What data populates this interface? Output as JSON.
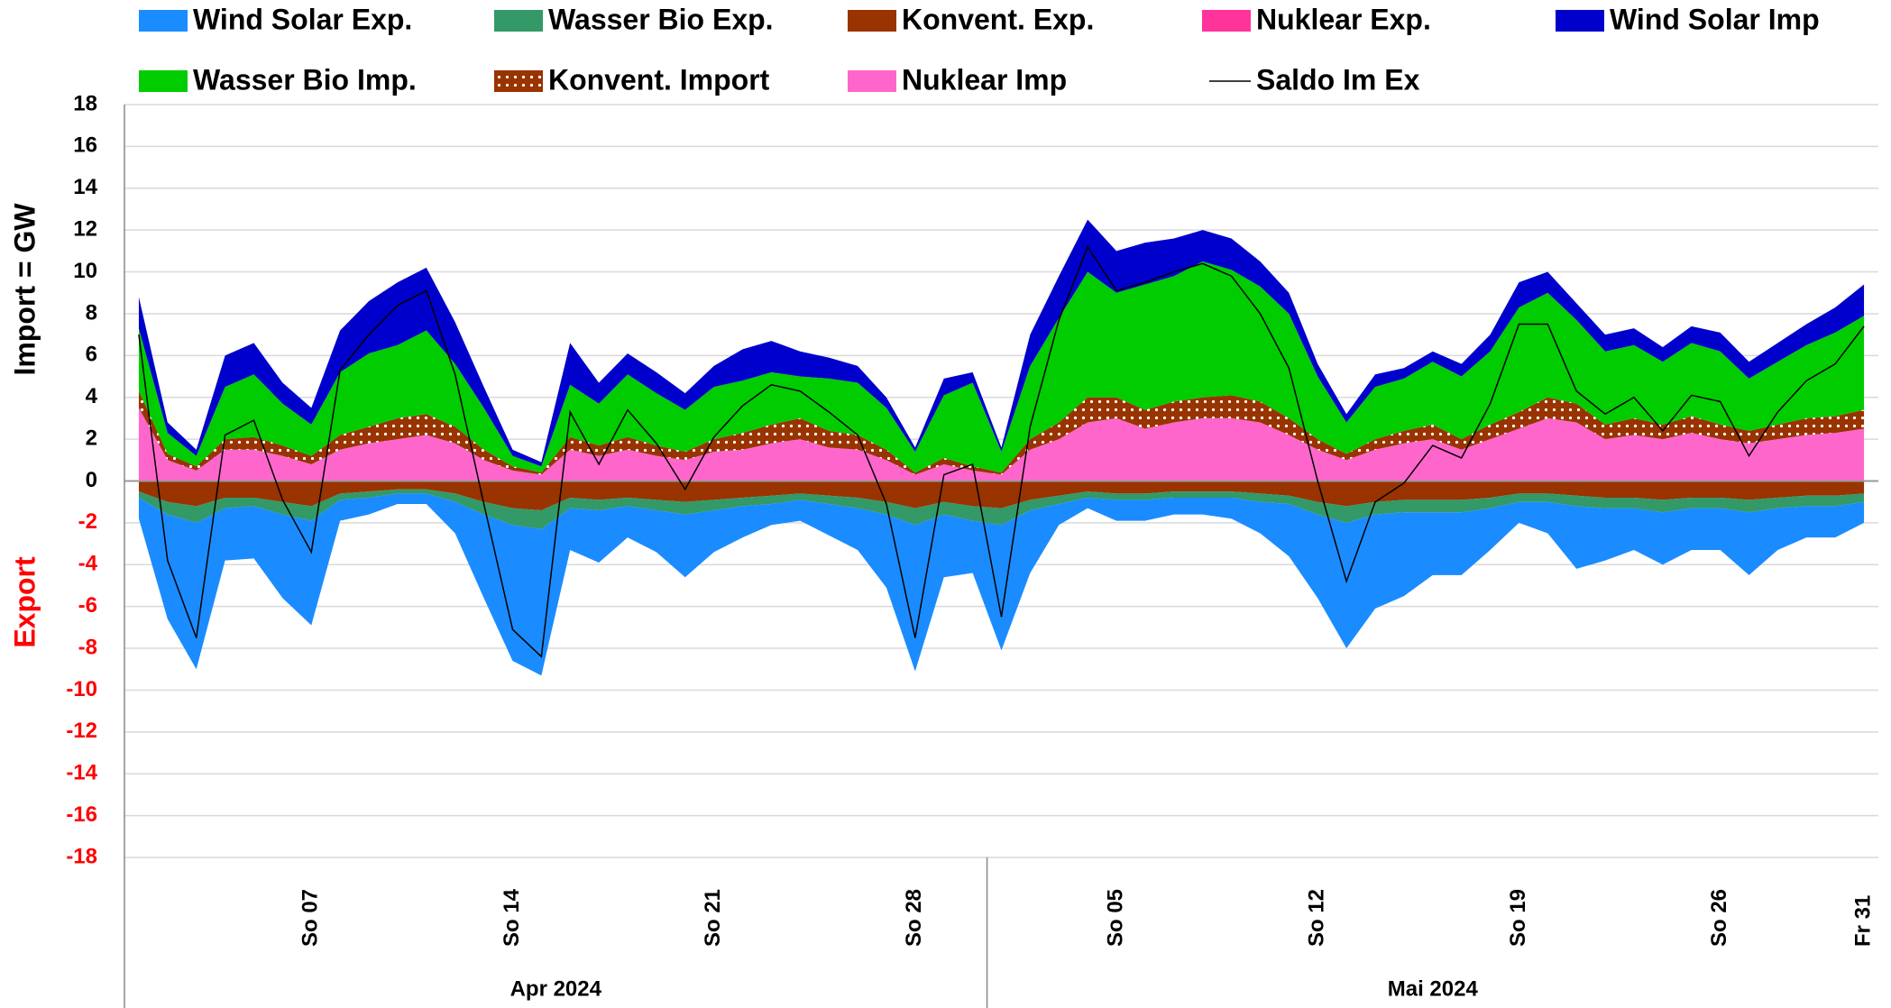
{
  "chart_data": {
    "type": "stacked_area",
    "ylabel_import": "Import   =   GW",
    "ylabel_export": "Export",
    "export_color": "#ff0000",
    "categories": [
      null,
      null,
      null,
      null,
      null,
      null,
      "So 07",
      null,
      null,
      null,
      null,
      null,
      null,
      "So 14",
      null,
      null,
      null,
      null,
      null,
      null,
      "So 21",
      null,
      null,
      null,
      null,
      null,
      null,
      "So 28",
      null,
      null,
      null,
      null,
      null,
      null,
      "So 05",
      null,
      null,
      null,
      null,
      null,
      null,
      "So 12",
      null,
      null,
      null,
      null,
      null,
      null,
      "So 19",
      null,
      null,
      null,
      null,
      null,
      null,
      "So 26",
      null,
      null,
      null,
      null,
      "Fr 31"
    ],
    "groups": [
      {
        "label": "Apr 2024",
        "count": 30
      },
      {
        "label": "Mai 2024",
        "count": 31
      }
    ],
    "ylim": [
      -18,
      18
    ],
    "yticks": [
      -18,
      -16,
      -14,
      -12,
      -10,
      -8,
      -6,
      -4,
      -2,
      0,
      2,
      4,
      6,
      8,
      10,
      12,
      14,
      16,
      18
    ],
    "grid": true,
    "series": [
      {
        "name": "Wind Solar Exp.",
        "color": "#1a8cff",
        "kind": "area",
        "values": [
          -1.0,
          -5.0,
          -7.0,
          -2.5,
          -2.5,
          -4.0,
          -5.0,
          -1.0,
          -0.8,
          -0.5,
          -0.5,
          -1.5,
          -4.0,
          -6.5,
          -7.0,
          -2.0,
          -2.5,
          -1.5,
          -2.0,
          -3.0,
          -2.0,
          -1.5,
          -1.0,
          -1.0,
          -1.5,
          -2.0,
          -3.5,
          -7.0,
          -3.0,
          -2.5,
          -6.0,
          -3.0,
          -1.0,
          -0.5,
          -1.0,
          -1.0,
          -0.8,
          -0.8,
          -1.0,
          -1.5,
          -2.5,
          -4.0,
          -6.0,
          -4.5,
          -4.0,
          -3.0,
          -3.0,
          -2.0,
          -1.0,
          -1.5,
          -3.0,
          -2.5,
          -2.0,
          -2.5,
          -2.0,
          -2.0,
          -3.0,
          -2.0,
          -1.5,
          -1.5,
          -1.0
        ]
      },
      {
        "name": "Wasser Bio Exp.",
        "color": "#339966",
        "kind": "area",
        "values": [
          -0.3,
          -0.6,
          -0.8,
          -0.5,
          -0.4,
          -0.6,
          -0.7,
          -0.3,
          -0.3,
          -0.2,
          -0.2,
          -0.4,
          -0.6,
          -0.8,
          -0.9,
          -0.5,
          -0.5,
          -0.4,
          -0.5,
          -0.6,
          -0.5,
          -0.4,
          -0.4,
          -0.3,
          -0.4,
          -0.5,
          -0.6,
          -0.8,
          -0.6,
          -0.7,
          -0.8,
          -0.5,
          -0.4,
          -0.3,
          -0.3,
          -0.3,
          -0.3,
          -0.3,
          -0.3,
          -0.4,
          -0.4,
          -0.6,
          -0.8,
          -0.6,
          -0.6,
          -0.6,
          -0.6,
          -0.5,
          -0.4,
          -0.4,
          -0.5,
          -0.5,
          -0.5,
          -0.6,
          -0.5,
          -0.5,
          -0.6,
          -0.5,
          -0.5,
          -0.5,
          -0.4
        ]
      },
      {
        "name": "Konvent. Exp.",
        "color": "#993300",
        "kind": "area",
        "values": [
          -0.5,
          -1.0,
          -1.2,
          -0.8,
          -0.8,
          -1.0,
          -1.2,
          -0.6,
          -0.5,
          -0.4,
          -0.4,
          -0.6,
          -1.0,
          -1.3,
          -1.4,
          -0.8,
          -0.9,
          -0.8,
          -0.9,
          -1.0,
          -0.9,
          -0.8,
          -0.7,
          -0.6,
          -0.7,
          -0.8,
          -1.0,
          -1.3,
          -1.0,
          -1.2,
          -1.3,
          -0.9,
          -0.7,
          -0.5,
          -0.6,
          -0.6,
          -0.5,
          -0.5,
          -0.5,
          -0.6,
          -0.7,
          -1.0,
          -1.2,
          -1.0,
          -0.9,
          -0.9,
          -0.9,
          -0.8,
          -0.6,
          -0.6,
          -0.7,
          -0.8,
          -0.8,
          -0.9,
          -0.8,
          -0.8,
          -0.9,
          -0.8,
          -0.7,
          -0.7,
          -0.6
        ]
      },
      {
        "name": "Nuklear Exp.",
        "color": "#ff3399",
        "kind": "area",
        "values": [
          0,
          0,
          0,
          0,
          0,
          0,
          0,
          0,
          0,
          0,
          0,
          0,
          0,
          0,
          0,
          0,
          0,
          0,
          0,
          0,
          0,
          0,
          0,
          0,
          0,
          0,
          0,
          0,
          0,
          0,
          0,
          0,
          0,
          0,
          0,
          0,
          0,
          0,
          0,
          0,
          0,
          0,
          0,
          0,
          0,
          0,
          0,
          0,
          0,
          0,
          0,
          0,
          0,
          0,
          0,
          0,
          0,
          0,
          0,
          0,
          0
        ]
      },
      {
        "name": "Wind Solar Imp",
        "color": "#0000cc",
        "kind": "area",
        "values": [
          1.5,
          0.5,
          0.3,
          1.5,
          1.5,
          1.0,
          0.8,
          2.0,
          2.5,
          3.0,
          3.0,
          2.0,
          1.0,
          0.3,
          0.2,
          2.0,
          1.0,
          1.0,
          1.0,
          0.8,
          1.0,
          1.5,
          1.5,
          1.2,
          1.0,
          0.8,
          0.5,
          0.2,
          0.8,
          0.5,
          0.2,
          1.5,
          2.0,
          2.5,
          2.0,
          2.0,
          1.8,
          1.5,
          1.5,
          1.2,
          1.0,
          0.6,
          0.4,
          0.6,
          0.5,
          0.5,
          0.6,
          0.8,
          1.2,
          1.0,
          0.8,
          0.8,
          0.8,
          0.7,
          0.8,
          0.9,
          0.8,
          0.9,
          1.0,
          1.2,
          1.5
        ]
      },
      {
        "name": "Wasser Bio Imp.",
        "color": "#00cc00",
        "kind": "area",
        "values": [
          3.0,
          1.0,
          0.5,
          2.5,
          3.0,
          2.0,
          1.5,
          3.0,
          3.5,
          3.5,
          4.0,
          3.0,
          2.0,
          0.5,
          0.3,
          2.5,
          2.0,
          3.0,
          2.5,
          2.0,
          2.5,
          2.5,
          2.5,
          2.0,
          2.5,
          2.5,
          2.0,
          1.0,
          3.0,
          4.0,
          1.0,
          3.5,
          5.0,
          6.0,
          5.0,
          6.0,
          6.0,
          6.5,
          6.0,
          5.5,
          5.0,
          3.0,
          1.5,
          2.5,
          2.5,
          3.0,
          3.0,
          3.5,
          5.0,
          5.0,
          4.0,
          3.5,
          3.5,
          3.0,
          3.5,
          3.5,
          2.5,
          3.0,
          3.5,
          4.0,
          4.5
        ]
      },
      {
        "name": "Konvent. Import",
        "color": "#993300",
        "kind": "area",
        "dotted": true,
        "values": [
          0.8,
          0.3,
          0.2,
          0.5,
          0.6,
          0.5,
          0.4,
          0.7,
          0.8,
          1.0,
          1.0,
          0.8,
          0.5,
          0.2,
          0.1,
          0.6,
          0.5,
          0.6,
          0.5,
          0.4,
          0.6,
          0.8,
          0.9,
          1.0,
          0.8,
          0.7,
          0.5,
          0.1,
          0.3,
          0.2,
          0.1,
          0.5,
          0.8,
          1.2,
          1.0,
          0.9,
          1.0,
          1.0,
          1.1,
          1.0,
          0.8,
          0.5,
          0.3,
          0.5,
          0.6,
          0.7,
          0.5,
          0.7,
          0.8,
          1.0,
          0.9,
          0.7,
          0.8,
          0.7,
          0.8,
          0.7,
          0.6,
          0.7,
          0.8,
          0.8,
          0.9
        ]
      },
      {
        "name": "Nuklear Imp",
        "color": "#ff66cc",
        "kind": "area",
        "values": [
          3.5,
          1.0,
          0.5,
          1.5,
          1.5,
          1.2,
          0.8,
          1.5,
          1.8,
          2.0,
          2.2,
          1.8,
          1.0,
          0.5,
          0.3,
          1.5,
          1.2,
          1.5,
          1.2,
          1.0,
          1.4,
          1.5,
          1.8,
          2.0,
          1.6,
          1.5,
          1.0,
          0.3,
          0.8,
          0.5,
          0.3,
          1.5,
          2.0,
          2.8,
          3.0,
          2.5,
          2.8,
          3.0,
          3.0,
          2.8,
          2.2,
          1.5,
          1.0,
          1.5,
          1.8,
          2.0,
          1.5,
          2.0,
          2.5,
          3.0,
          2.8,
          2.0,
          2.2,
          2.0,
          2.3,
          2.0,
          1.8,
          2.0,
          2.2,
          2.3,
          2.5
        ]
      },
      {
        "name": "Saldo Im Ex",
        "color": "#000000",
        "kind": "line",
        "values": [
          7.0,
          -3.8,
          -7.5,
          2.2,
          2.9,
          -0.9,
          -3.4,
          5.3,
          7.0,
          8.4,
          9.1,
          5.1,
          -1.1,
          -7.1,
          -8.4,
          3.3,
          0.8,
          3.4,
          1.8,
          -0.4,
          2.1,
          3.6,
          4.6,
          4.3,
          3.3,
          2.2,
          -1.1,
          -7.5,
          0.3,
          0.8,
          -6.5,
          2.6,
          7.7,
          11.2,
          9.1,
          9.5,
          10.0,
          10.4,
          9.8,
          8.0,
          5.4,
          0.0,
          -4.8,
          -1.0,
          -0.1,
          1.7,
          1.1,
          3.7,
          7.5,
          7.5,
          4.3,
          3.2,
          4.0,
          2.4,
          4.1,
          3.8,
          1.2,
          3.3,
          4.8,
          5.6,
          7.4
        ]
      }
    ]
  }
}
